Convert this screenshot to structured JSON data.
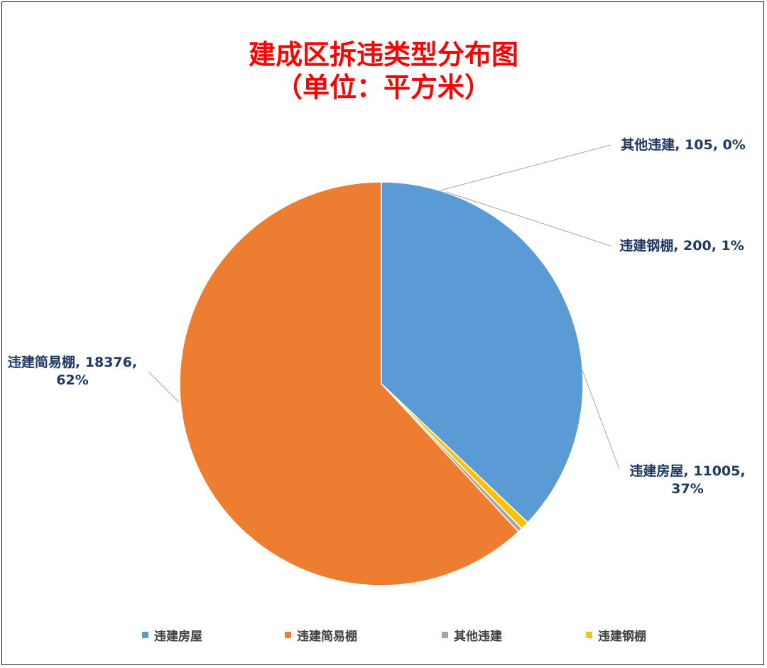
{
  "chart_data": {
    "type": "pie",
    "title": "建成区拆违类型分布图",
    "subtitle": "（单位：平方米）",
    "slices": [
      {
        "name": "违建房屋",
        "value": 11005,
        "percent": "37%",
        "label": [
          "违建房屋, 11005,",
          "37%"
        ],
        "color": "#5b9bd5"
      },
      {
        "name": "违建简易棚",
        "value": 18376,
        "percent": "62%",
        "label": [
          "违建简易棚, 18376,",
          "62%"
        ],
        "color": "#ed7d31"
      },
      {
        "name": "其他违建",
        "value": 105,
        "percent": "0%",
        "label": [
          "其他违建, 105, 0%"
        ],
        "color": "#a5a5a5"
      },
      {
        "name": "违建钢棚",
        "value": 200,
        "percent": "1%",
        "label": [
          "违建钢棚, 200, 1%"
        ],
        "color": "#ffc000"
      }
    ],
    "legend": {
      "position": "bottom",
      "entries": [
        "违建房屋",
        "违建简易棚",
        "其他违建",
        "违建钢棚"
      ]
    }
  }
}
